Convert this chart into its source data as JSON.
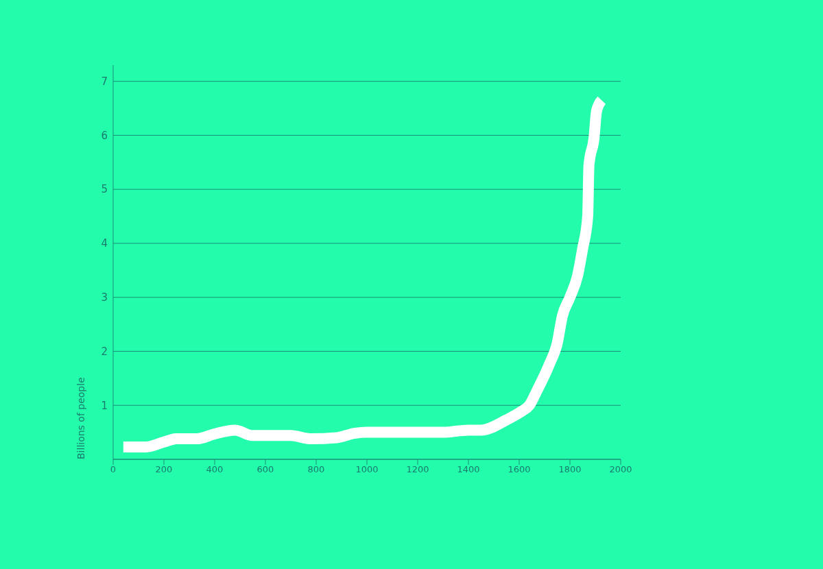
{
  "chart_data": {
    "type": "line",
    "ylabel": "Billions of people",
    "x": [
      40,
      130,
      200,
      250,
      330,
      400,
      480,
      550,
      700,
      780,
      880,
      950,
      1000,
      1300,
      1400,
      1450,
      1550,
      1610,
      1640,
      1670,
      1720,
      1750,
      1770,
      1800,
      1830,
      1850,
      1870,
      1875,
      1895,
      1905,
      1925
    ],
    "series": [
      {
        "color": "#ffffff",
        "values": [
          0.23,
          0.23,
          0.32,
          0.38,
          0.38,
          0.47,
          0.54,
          0.44,
          0.44,
          0.38,
          0.4,
          0.48,
          0.5,
          0.5,
          0.54,
          0.54,
          0.73,
          0.89,
          1.0,
          1.27,
          1.77,
          2.15,
          2.65,
          3.0,
          3.4,
          3.9,
          4.5,
          5.45,
          5.95,
          6.45,
          6.65
        ]
      }
    ],
    "xlim": [
      0,
      2000
    ],
    "xticks": [
      0,
      200,
      400,
      600,
      800,
      1000,
      1200,
      1400,
      1600,
      1800,
      2000
    ],
    "ylim": [
      0,
      7.3
    ],
    "yticks": [
      {
        "value": 0,
        "label": null
      },
      1,
      2,
      3,
      4,
      5,
      6,
      7
    ],
    "grid": "y",
    "marker": "none",
    "line_style": "solid"
  }
}
